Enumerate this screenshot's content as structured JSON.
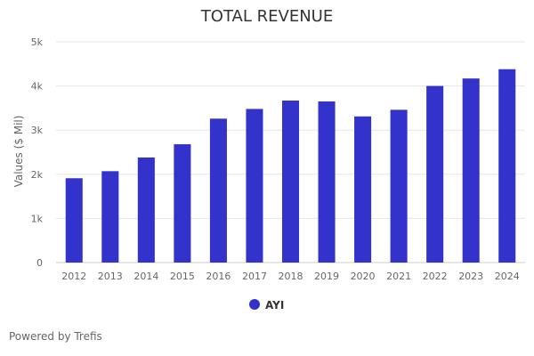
{
  "chart_data": {
    "type": "bar",
    "title": "TOTAL REVENUE",
    "ylabel": "Values ($ Mil)",
    "xlabel": "",
    "categories": [
      "2012",
      "2013",
      "2014",
      "2015",
      "2016",
      "2017",
      "2018",
      "2019",
      "2020",
      "2021",
      "2022",
      "2023",
      "2024"
    ],
    "series": [
      {
        "name": "AYI",
        "values": [
          1910,
          2070,
          2380,
          2680,
          3260,
          3480,
          3670,
          3650,
          3310,
          3460,
          4000,
          4170,
          4380
        ],
        "color": "#3333cc"
      }
    ],
    "ylim": [
      0,
      5000
    ],
    "yticks": [
      0,
      1000,
      2000,
      3000,
      4000,
      5000
    ],
    "ytick_labels": [
      "0",
      "1k",
      "2k",
      "3k",
      "4k",
      "5k"
    ],
    "grid": true,
    "legend": "bottom-center"
  },
  "footer": {
    "credit": "Powered by Trefis"
  }
}
